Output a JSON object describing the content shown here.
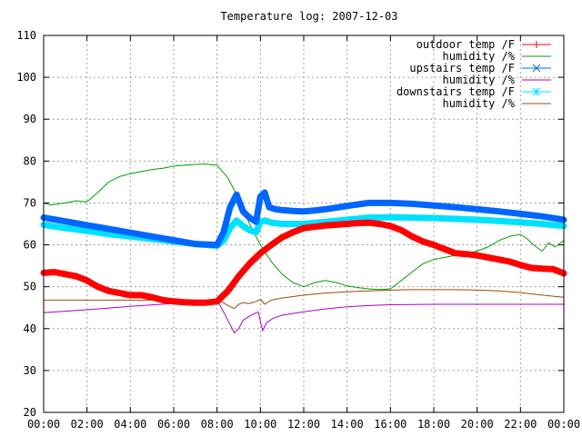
{
  "chart_data": {
    "type": "line",
    "title": "Temperature log: 2007-12-03",
    "xlabel": "",
    "ylabel": "",
    "xlim": [
      0,
      24
    ],
    "ylim": [
      20,
      110
    ],
    "x_ticks": [
      "00:00",
      "02:00",
      "04:00",
      "06:00",
      "08:00",
      "10:00",
      "12:00",
      "14:00",
      "16:00",
      "18:00",
      "20:00",
      "22:00",
      "00:00"
    ],
    "y_ticks": [
      "20",
      "30",
      "40",
      "50",
      "60",
      "70",
      "80",
      "90",
      "100",
      "110"
    ],
    "grid": true,
    "legend_position": "top-right",
    "series": [
      {
        "name": "outdoor temp /F",
        "color": "#ff0000",
        "marker": "plus",
        "thick": true,
        "x": [
          0,
          0.5,
          1,
          1.5,
          2,
          2.5,
          3,
          3.5,
          4,
          4.5,
          5,
          5.5,
          6,
          6.5,
          7,
          7.5,
          8,
          8.5,
          9,
          9.5,
          10,
          10.5,
          11,
          11.5,
          12,
          12.5,
          13,
          13.5,
          14,
          14.5,
          15,
          15.5,
          16,
          16.5,
          17,
          17.5,
          18,
          18.5,
          19,
          19.5,
          20,
          20.5,
          21,
          21.5,
          22,
          22.5,
          23,
          23.5,
          24
        ],
        "y": [
          53.3,
          53.5,
          53.0,
          52.5,
          51.5,
          50.0,
          49.0,
          48.5,
          48.0,
          48.0,
          47.5,
          46.8,
          46.5,
          46.3,
          46.2,
          46.2,
          46.5,
          49.0,
          52.5,
          55.5,
          58.0,
          60.0,
          61.8,
          63.0,
          64.0,
          64.3,
          64.6,
          64.8,
          65.0,
          65.2,
          65.3,
          65.0,
          64.5,
          63.5,
          62.0,
          60.8,
          60.0,
          59.0,
          58.0,
          57.8,
          57.5,
          57.0,
          56.5,
          56.0,
          55.2,
          54.5,
          54.3,
          54.2,
          53.2
        ]
      },
      {
        "name": "humidity /%",
        "color": "#00a000",
        "marker": "none",
        "thick": false,
        "x": [
          0,
          0.3,
          0.7,
          1,
          1.5,
          2,
          2.5,
          3,
          3.5,
          4,
          4.5,
          5,
          5.5,
          6,
          6.5,
          7,
          7.5,
          8,
          8.5,
          9,
          9.5,
          10,
          10.5,
          11,
          11.5,
          12,
          12.5,
          13,
          13.5,
          14,
          14.5,
          15,
          15.5,
          16,
          16.5,
          17,
          17.5,
          18,
          18.5,
          19,
          19.5,
          20,
          20.5,
          21,
          21.5,
          22,
          22.3,
          22.6,
          23,
          23.3,
          23.6,
          24
        ],
        "y": [
          70.0,
          69.5,
          69.8,
          70.0,
          70.5,
          70.3,
          72.5,
          75.0,
          76.3,
          77.0,
          77.5,
          78.0,
          78.3,
          78.8,
          79.0,
          79.2,
          79.3,
          79.0,
          76.0,
          71.0,
          65.0,
          60.0,
          56.0,
          53.0,
          51.0,
          50.0,
          51.0,
          51.5,
          51.0,
          50.2,
          49.8,
          49.5,
          49.3,
          49.5,
          51.5,
          53.5,
          55.5,
          56.5,
          57.0,
          57.5,
          58.0,
          58.5,
          59.5,
          61.0,
          62.0,
          62.5,
          61.5,
          60.0,
          58.5,
          60.5,
          59.5,
          61.0
        ]
      },
      {
        "name": "upstairs temp /F",
        "color": "#0066ff",
        "marker": "cross",
        "thick": true,
        "x": [
          0,
          1,
          2,
          3,
          4,
          5,
          6,
          7,
          8,
          8.3,
          8.6,
          8.9,
          9.2,
          9.5,
          9.8,
          10.0,
          10.2,
          10.4,
          10.7,
          11,
          11.5,
          12,
          12.5,
          13,
          14,
          15,
          16,
          17,
          18,
          19,
          20,
          21,
          22,
          23,
          24
        ],
        "y": [
          66.5,
          65.6,
          64.7,
          63.8,
          62.9,
          62.0,
          61.1,
          60.2,
          60.0,
          63.0,
          69.0,
          72.0,
          68.0,
          66.5,
          65.5,
          71.5,
          72.5,
          69.0,
          68.5,
          68.3,
          68.1,
          68.0,
          68.2,
          68.5,
          69.3,
          70.0,
          70.0,
          69.8,
          69.4,
          69.0,
          68.5,
          68.0,
          67.4,
          66.8,
          66.0
        ]
      },
      {
        "name": "humidity /%",
        "color": "#aa00cc",
        "marker": "none",
        "thick": false,
        "x": [
          0,
          2,
          4,
          6,
          7.5,
          8.0,
          8.3,
          8.6,
          8.8,
          9.0,
          9.2,
          9.5,
          9.9,
          10.1,
          10.3,
          10.6,
          11,
          12,
          13,
          14,
          15,
          16,
          18,
          20,
          22,
          24
        ],
        "y": [
          43.8,
          44.5,
          45.3,
          46.0,
          46.5,
          46.8,
          44.0,
          41.0,
          39.0,
          40.0,
          42.0,
          43.0,
          44.0,
          39.5,
          41.5,
          42.5,
          43.2,
          44.0,
          44.7,
          45.2,
          45.5,
          45.7,
          45.8,
          45.8,
          45.8,
          45.8
        ]
      },
      {
        "name": "downstairs temp /F",
        "color": "#00e0ff",
        "marker": "star",
        "thick": true,
        "x": [
          0,
          1,
          2,
          3,
          4,
          5,
          6,
          7,
          8,
          8.3,
          8.6,
          8.9,
          9.2,
          9.5,
          9.8,
          10.0,
          10.2,
          10.5,
          11,
          12,
          13,
          14,
          15,
          16,
          17,
          18,
          19,
          20,
          21,
          22,
          23,
          24
        ],
        "y": [
          64.8,
          64.0,
          63.3,
          62.6,
          62.0,
          61.4,
          60.8,
          60.2,
          59.8,
          61.0,
          64.0,
          65.8,
          64.5,
          63.5,
          63.0,
          65.5,
          65.8,
          65.3,
          65.0,
          65.0,
          65.5,
          66.0,
          66.5,
          66.6,
          66.5,
          66.4,
          66.2,
          66.0,
          65.7,
          65.4,
          65.0,
          64.5
        ]
      },
      {
        "name": "humidity /%",
        "color": "#a04a00",
        "marker": "none",
        "thick": false,
        "x": [
          0,
          2,
          4,
          6,
          7,
          7.8,
          8.2,
          8.5,
          8.8,
          9.0,
          9.2,
          9.5,
          9.8,
          10.0,
          10.2,
          10.5,
          11,
          12,
          13,
          14,
          15,
          16,
          17,
          18,
          19,
          20,
          21,
          22,
          23,
          24
        ],
        "y": [
          46.8,
          46.8,
          46.8,
          46.8,
          46.8,
          46.8,
          46.5,
          45.5,
          44.8,
          45.8,
          46.2,
          46.0,
          46.5,
          47.0,
          45.8,
          46.8,
          47.3,
          48.0,
          48.5,
          48.8,
          49.0,
          49.2,
          49.3,
          49.3,
          49.3,
          49.2,
          49.0,
          48.6,
          48.0,
          47.5
        ]
      }
    ]
  }
}
